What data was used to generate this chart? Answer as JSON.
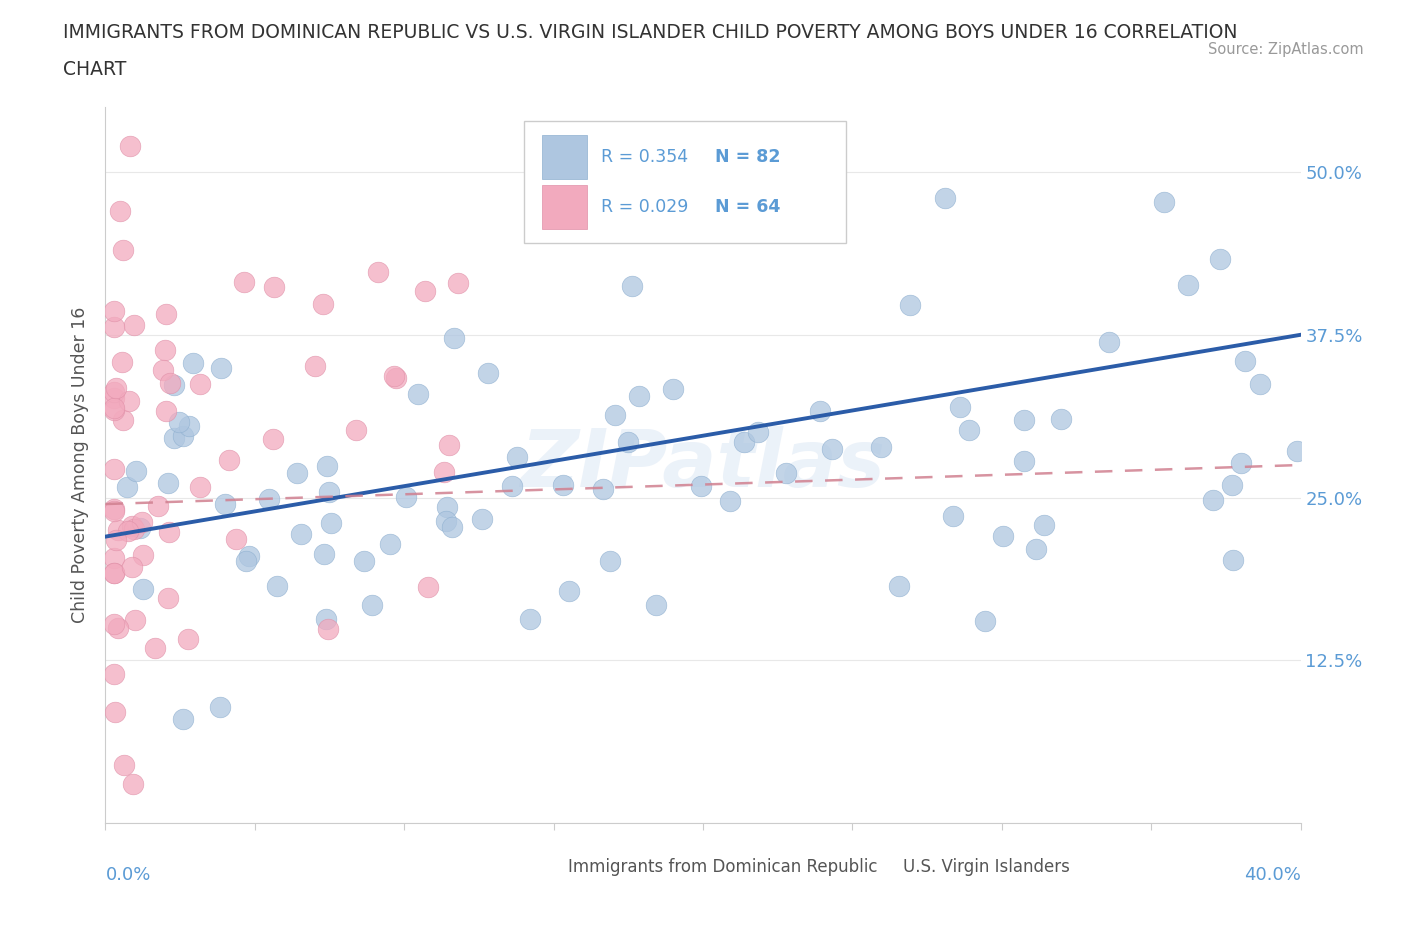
{
  "title_line1": "IMMIGRANTS FROM DOMINICAN REPUBLIC VS U.S. VIRGIN ISLANDER CHILD POVERTY AMONG BOYS UNDER 16 CORRELATION",
  "title_line2": "CHART",
  "source": "Source: ZipAtlas.com",
  "ylabel": "Child Poverty Among Boys Under 16",
  "xlim": [
    0.0,
    0.4
  ],
  "ylim": [
    0.0,
    0.55
  ],
  "y_tick_pos": [
    0.0,
    0.125,
    0.25,
    0.375,
    0.5
  ],
  "y_tick_labels": [
    "",
    "12.5%",
    "25.0%",
    "37.5%",
    "50.0%"
  ],
  "watermark": "ZIPatlas",
  "blue_color": "#aec6e0",
  "blue_line_color": "#2b5ca8",
  "pink_color": "#f2aabe",
  "pink_line_color": "#d08090",
  "background_color": "#ffffff",
  "title_color": "#333333",
  "axis_label_color": "#5b9bd5",
  "grid_color": "#e8e8e8",
  "legend_r1": "R = 0.354",
  "legend_n1": "N = 82",
  "legend_r2": "R = 0.029",
  "legend_n2": "N = 64",
  "blue_seed": 42,
  "pink_seed": 99
}
